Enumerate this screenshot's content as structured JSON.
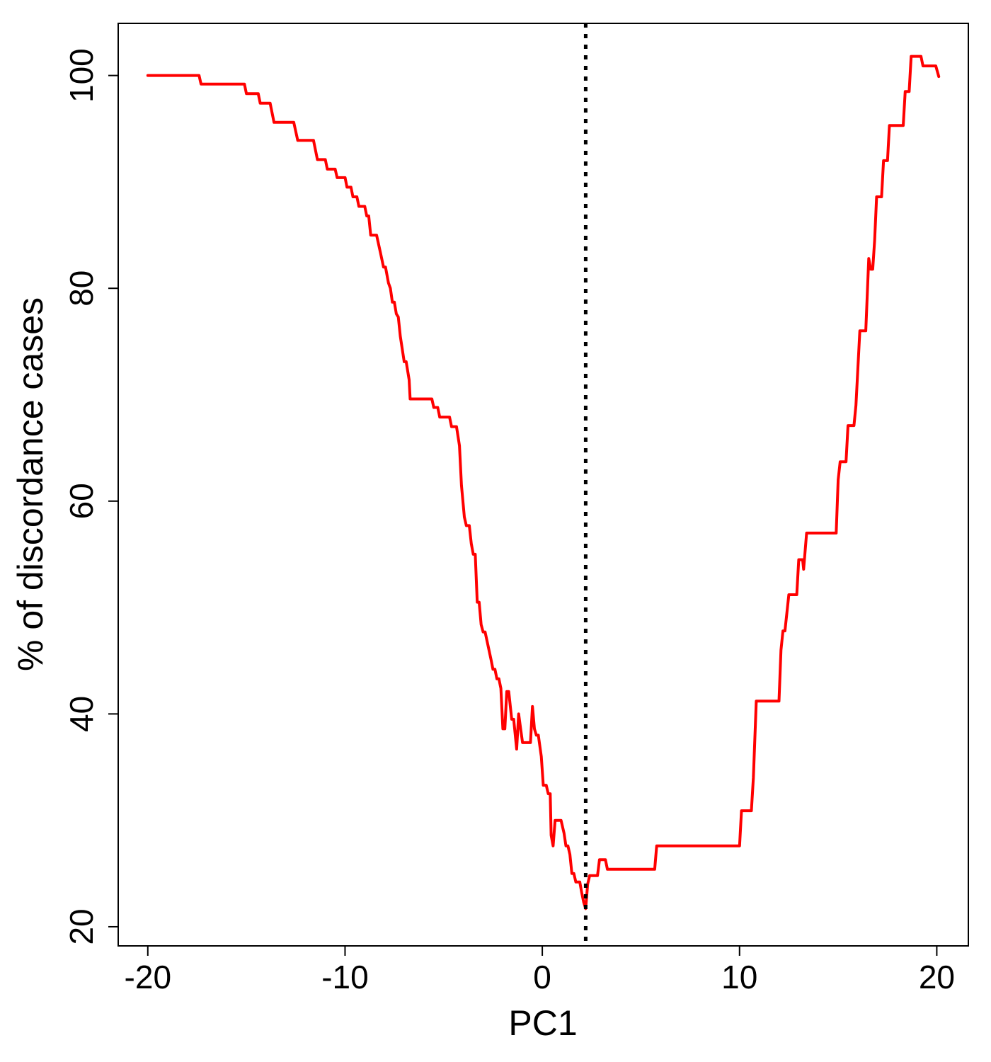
{
  "chart_data": {
    "type": "line",
    "title": "",
    "xlabel": "PC1",
    "ylabel": "% of discordance cases",
    "xlim": [
      -21.5,
      21.6
    ],
    "ylim": [
      18.2,
      104.9
    ],
    "xticks": [
      -20,
      -10,
      0,
      10,
      20
    ],
    "xtick_labels": [
      "-20",
      "-10",
      "0",
      "10",
      "20"
    ],
    "yticks": [
      20,
      40,
      60,
      80,
      100
    ],
    "ytick_labels": [
      "20",
      "40",
      "60",
      "80",
      "100"
    ],
    "grid": false,
    "legend": "none",
    "vline": {
      "x": 2.2,
      "style": "dotted",
      "color": "#000000"
    },
    "series": [
      {
        "color": "#ff0000",
        "points": [
          [
            -20,
            100
          ],
          [
            -17.4,
            100
          ],
          [
            -17.3,
            99.2
          ],
          [
            -15.1,
            99.2
          ],
          [
            -15.0,
            98.3
          ],
          [
            -14.4,
            98.3
          ],
          [
            -14.3,
            97.4
          ],
          [
            -13.8,
            97.4
          ],
          [
            -13.6,
            95.6
          ],
          [
            -12.6,
            95.6
          ],
          [
            -12.4,
            93.9
          ],
          [
            -11.6,
            93.9
          ],
          [
            -11.4,
            92.1
          ],
          [
            -11.0,
            92.1
          ],
          [
            -10.9,
            91.2
          ],
          [
            -10.5,
            91.2
          ],
          [
            -10.4,
            90.4
          ],
          [
            -10.0,
            90.4
          ],
          [
            -9.9,
            89.5
          ],
          [
            -9.7,
            89.5
          ],
          [
            -9.6,
            88.6
          ],
          [
            -9.4,
            88.6
          ],
          [
            -9.3,
            87.7
          ],
          [
            -9.0,
            87.7
          ],
          [
            -8.9,
            86.8
          ],
          [
            -8.8,
            86.8
          ],
          [
            -8.7,
            85.0
          ],
          [
            -8.4,
            85.0
          ],
          [
            -8.2,
            83.3
          ],
          [
            -8.05,
            82.0
          ],
          [
            -7.95,
            82.0
          ],
          [
            -7.8,
            80.5
          ],
          [
            -7.7,
            80.0
          ],
          [
            -7.6,
            78.7
          ],
          [
            -7.5,
            78.7
          ],
          [
            -7.4,
            77.6
          ],
          [
            -7.3,
            77.3
          ],
          [
            -7.2,
            75.5
          ],
          [
            -7.0,
            73.1
          ],
          [
            -6.9,
            73.1
          ],
          [
            -6.75,
            71.4
          ],
          [
            -6.7,
            69.6
          ],
          [
            -5.6,
            69.6
          ],
          [
            -5.5,
            68.8
          ],
          [
            -5.3,
            68.8
          ],
          [
            -5.2,
            67.9
          ],
          [
            -4.7,
            67.9
          ],
          [
            -4.6,
            67.0
          ],
          [
            -4.35,
            67.0
          ],
          [
            -4.2,
            65.2
          ],
          [
            -4.1,
            61.5
          ],
          [
            -3.95,
            58.5
          ],
          [
            -3.85,
            57.7
          ],
          [
            -3.7,
            57.7
          ],
          [
            -3.6,
            56.0
          ],
          [
            -3.5,
            55.0
          ],
          [
            -3.4,
            55.0
          ],
          [
            -3.3,
            50.5
          ],
          [
            -3.2,
            50.5
          ],
          [
            -3.1,
            48.4
          ],
          [
            -3.0,
            47.7
          ],
          [
            -2.9,
            47.7
          ],
          [
            -2.6,
            45.1
          ],
          [
            -2.5,
            44.2
          ],
          [
            -2.4,
            44.2
          ],
          [
            -2.3,
            43.3
          ],
          [
            -2.2,
            43.3
          ],
          [
            -2.1,
            42.4
          ],
          [
            -2.0,
            38.6
          ],
          [
            -1.9,
            38.6
          ],
          [
            -1.8,
            42.1
          ],
          [
            -1.7,
            42.1
          ],
          [
            -1.55,
            39.5
          ],
          [
            -1.45,
            39.5
          ],
          [
            -1.3,
            36.7
          ],
          [
            -1.2,
            40.0
          ],
          [
            -1.1,
            38.6
          ],
          [
            -1.0,
            37.3
          ],
          [
            -0.8,
            37.3
          ],
          [
            -0.6,
            37.3
          ],
          [
            -0.5,
            40.7
          ],
          [
            -0.4,
            38.6
          ],
          [
            -0.3,
            38.0
          ],
          [
            -0.2,
            38.0
          ],
          [
            -0.05,
            36.0
          ],
          [
            0.05,
            33.3
          ],
          [
            0.2,
            33.3
          ],
          [
            0.3,
            32.5
          ],
          [
            0.4,
            32.5
          ],
          [
            0.45,
            28.6
          ],
          [
            0.55,
            27.6
          ],
          [
            0.65,
            30.0
          ],
          [
            0.95,
            30.0
          ],
          [
            1.1,
            28.8
          ],
          [
            1.2,
            27.6
          ],
          [
            1.3,
            27.6
          ],
          [
            1.4,
            26.8
          ],
          [
            1.5,
            25.0
          ],
          [
            1.6,
            25.0
          ],
          [
            1.7,
            24.2
          ],
          [
            1.9,
            24.2
          ],
          [
            2.0,
            23.2
          ],
          [
            2.1,
            22.3
          ],
          [
            2.2,
            21.7
          ],
          [
            2.3,
            24.0
          ],
          [
            2.4,
            24.8
          ],
          [
            2.8,
            24.8
          ],
          [
            2.9,
            26.3
          ],
          [
            3.2,
            26.3
          ],
          [
            3.3,
            25.4
          ],
          [
            5.7,
            25.4
          ],
          [
            5.8,
            27.6
          ],
          [
            10.0,
            27.6
          ],
          [
            10.1,
            30.9
          ],
          [
            10.6,
            30.9
          ],
          [
            10.7,
            34.0
          ],
          [
            10.85,
            41.2
          ],
          [
            12.0,
            41.2
          ],
          [
            12.1,
            46.0
          ],
          [
            12.2,
            47.8
          ],
          [
            12.3,
            47.8
          ],
          [
            12.5,
            51.2
          ],
          [
            12.9,
            51.2
          ],
          [
            13.0,
            54.5
          ],
          [
            13.2,
            54.5
          ],
          [
            13.25,
            53.6
          ],
          [
            13.4,
            57.0
          ],
          [
            14.9,
            57.0
          ],
          [
            15.0,
            62.0
          ],
          [
            15.1,
            63.7
          ],
          [
            15.4,
            63.7
          ],
          [
            15.5,
            67.1
          ],
          [
            15.8,
            67.1
          ],
          [
            15.9,
            69.0
          ],
          [
            16.1,
            76.0
          ],
          [
            16.4,
            76.0
          ],
          [
            16.55,
            82.8
          ],
          [
            16.65,
            81.8
          ],
          [
            16.75,
            81.8
          ],
          [
            16.85,
            84.5
          ],
          [
            16.95,
            88.6
          ],
          [
            17.2,
            88.6
          ],
          [
            17.3,
            92.0
          ],
          [
            17.5,
            92.0
          ],
          [
            17.6,
            95.3
          ],
          [
            18.3,
            95.3
          ],
          [
            18.4,
            98.5
          ],
          [
            18.6,
            98.5
          ],
          [
            18.7,
            101.8
          ],
          [
            19.2,
            101.8
          ],
          [
            19.3,
            100.9
          ],
          [
            19.95,
            100.9
          ],
          [
            20.1,
            99.9
          ]
        ]
      }
    ]
  }
}
